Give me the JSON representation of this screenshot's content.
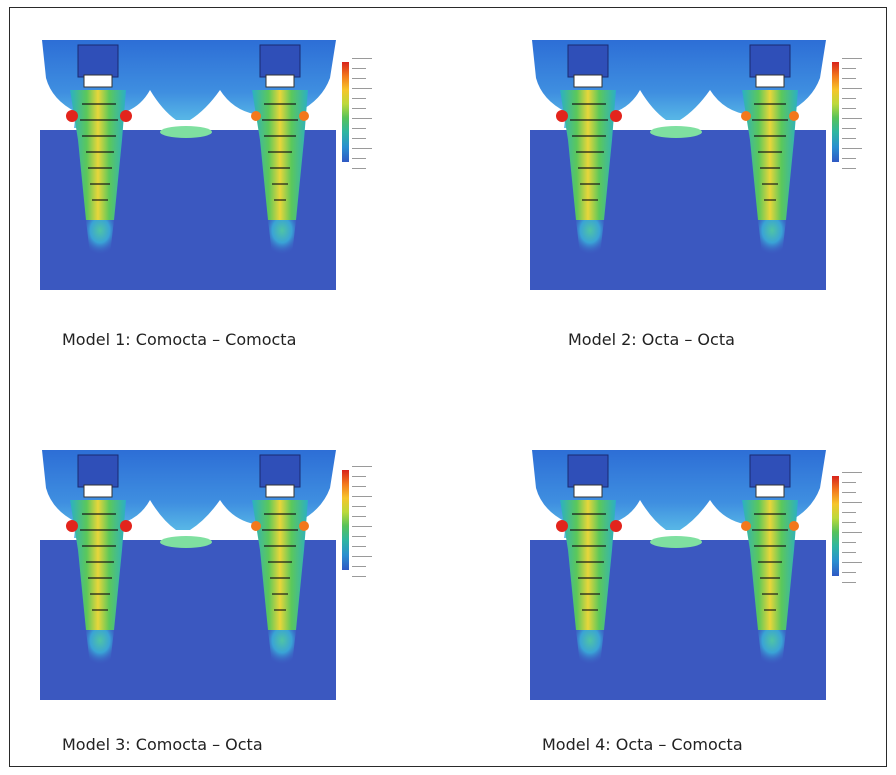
{
  "panels": [
    {
      "caption": "Model 1: Comocta – Comocta"
    },
    {
      "caption": "Model 2: Octa – Octa"
    },
    {
      "caption": "Model 3: Comocta – Octa"
    },
    {
      "caption": "Model 4: Octa – Comocta"
    }
  ],
  "colors": {
    "bone": "#3a59c2",
    "high": "#e3241c",
    "mid": "#f6c52a",
    "low": "#56c25a",
    "frame": "#2a2a2a"
  }
}
